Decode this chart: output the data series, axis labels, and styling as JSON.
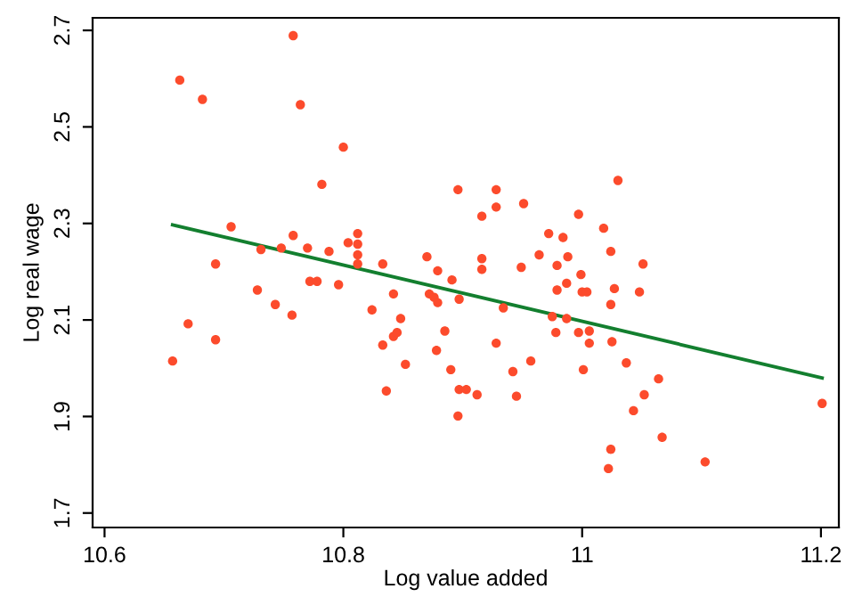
{
  "chart_data": {
    "type": "scatter",
    "xlabel": "Log value added",
    "ylabel": "Log real wage",
    "xlim": [
      10.59,
      11.215
    ],
    "ylim": [
      1.67,
      2.726
    ],
    "xticks": [
      10.6,
      10.8,
      {
        "value": 11,
        "label": "11"
      },
      11.2
    ],
    "yticks": [
      1.7,
      1.9,
      2.1,
      2.3,
      2.5,
      2.7
    ],
    "grid": false,
    "legend": false,
    "marker": "circle",
    "series": [
      {
        "color": "#fc4b2c",
        "x": [
          10.657,
          10.67,
          10.693,
          10.693,
          10.663,
          10.682,
          10.706,
          10.728,
          10.731,
          10.743,
          10.748,
          10.757,
          10.758,
          10.758,
          10.764,
          10.77,
          10.772,
          10.778,
          10.782,
          10.788,
          10.796,
          10.8,
          10.804,
          10.812,
          10.812,
          10.812,
          10.812,
          10.824,
          10.833,
          10.833,
          10.836,
          10.842,
          10.842,
          10.845,
          10.848,
          10.852,
          10.87,
          10.872,
          10.876,
          10.879,
          10.879,
          10.878,
          10.885,
          10.891,
          10.89,
          10.896,
          10.896,
          10.897,
          10.897,
          10.903,
          10.912,
          10.916,
          10.916,
          10.916,
          10.928,
          10.928,
          10.928,
          10.934,
          10.942,
          10.945,
          10.949,
          10.951,
          10.957,
          10.964,
          10.972,
          10.975,
          10.978,
          10.979,
          10.979,
          10.984,
          10.987,
          10.987,
          10.988,
          10.997,
          10.997,
          10.999,
          11.0,
          11.004,
          11.006,
          11.006,
          11.001,
          11.018,
          11.024,
          11.024,
          11.025,
          11.027,
          11.03,
          11.037,
          11.043,
          11.048,
          11.051,
          11.052,
          11.064,
          11.067,
          11.024,
          11.022,
          11.103,
          11.201
        ],
        "values": [
          2.015,
          2.092,
          2.059,
          2.216,
          2.597,
          2.557,
          2.293,
          2.162,
          2.246,
          2.132,
          2.249,
          2.11,
          2.275,
          2.689,
          2.546,
          2.249,
          2.18,
          2.18,
          2.381,
          2.242,
          2.173,
          2.458,
          2.26,
          2.279,
          2.257,
          2.235,
          2.216,
          2.121,
          2.216,
          2.048,
          1.953,
          2.154,
          2.066,
          2.074,
          2.103,
          2.008,
          2.231,
          2.154,
          2.147,
          2.136,
          2.202,
          2.037,
          2.077,
          2.183,
          1.997,
          2.37,
          1.901,
          2.143,
          1.956,
          1.956,
          1.945,
          2.315,
          2.227,
          2.205,
          2.37,
          2.334,
          2.052,
          2.125,
          1.993,
          1.942,
          2.209,
          2.341,
          2.015,
          2.235,
          2.279,
          2.107,
          2.074,
          2.213,
          2.162,
          2.271,
          2.176,
          2.103,
          2.231,
          2.319,
          2.074,
          2.194,
          2.158,
          2.158,
          2.077,
          2.052,
          1.997,
          2.29,
          2.242,
          2.132,
          2.055,
          2.165,
          2.389,
          2.011,
          1.912,
          2.158,
          2.216,
          1.945,
          1.978,
          1.857,
          1.832,
          1.792,
          1.806,
          1.927
        ]
      },
      {
        "type": "line",
        "marker": "none",
        "color": "#137f2f",
        "x": [
          10.657,
          11.201
        ],
        "values": [
          2.297,
          1.98
        ]
      }
    ]
  }
}
